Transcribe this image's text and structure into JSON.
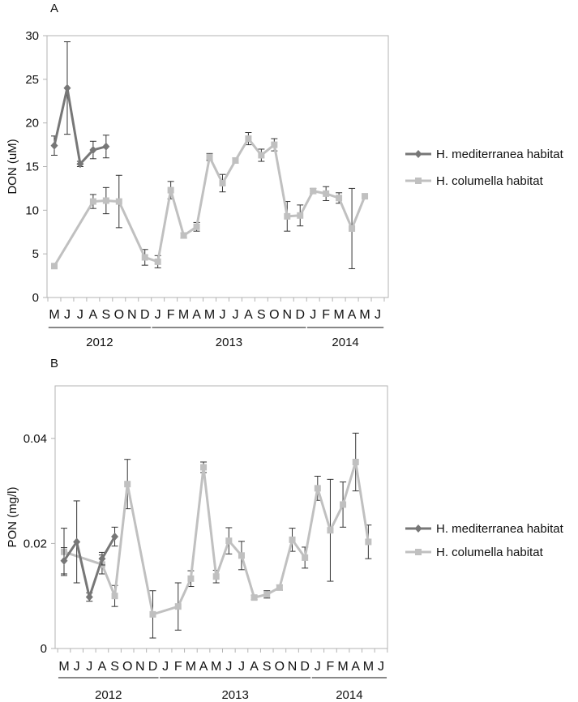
{
  "chart_data": [
    {
      "panel": "A",
      "type": "line",
      "xlabel": "",
      "ylabel": "DON (uM)",
      "ylim": [
        0,
        30
      ],
      "yticks": [
        0,
        5,
        10,
        15,
        20,
        25,
        30
      ],
      "categories": [
        "M",
        "J",
        "J",
        "A",
        "S",
        "O",
        "N",
        "D",
        "J",
        "F",
        "M",
        "A",
        "M",
        "J",
        "J",
        "A",
        "S",
        "O",
        "N",
        "D",
        "J",
        "F",
        "M",
        "A",
        "M",
        "J"
      ],
      "year_groups": [
        {
          "label": "2012",
          "from": 0,
          "to": 7
        },
        {
          "label": "2013",
          "from": 8,
          "to": 19
        },
        {
          "label": "2014",
          "from": 20,
          "to": 25
        }
      ],
      "legend_position": "right",
      "grid": false,
      "series": [
        {
          "name": "H. mediterranea habitat",
          "color": "#777777",
          "marker": "diamond",
          "values": [
            17.4,
            24.0,
            15.3,
            16.9,
            17.3,
            null,
            null,
            null,
            null,
            null,
            null,
            null,
            null,
            null,
            null,
            null,
            null,
            null,
            null,
            null,
            null,
            null,
            null,
            null,
            null,
            null
          ],
          "errors": [
            1.1,
            5.3,
            0.3,
            1.0,
            1.3,
            null,
            null,
            null,
            null,
            null,
            null,
            null,
            null,
            null,
            null,
            null,
            null,
            null,
            null,
            null,
            null,
            null,
            null,
            null,
            null,
            null
          ]
        },
        {
          "name": "H. columella habitat",
          "color": "#c0c0c0",
          "marker": "square",
          "values": [
            3.6,
            null,
            null,
            11.0,
            11.1,
            11.0,
            null,
            4.6,
            4.1,
            12.3,
            7.1,
            8.1,
            16.1,
            13.1,
            15.7,
            18.2,
            16.3,
            17.5,
            9.3,
            9.4,
            12.2,
            11.9,
            11.4,
            7.9,
            11.6,
            null
          ],
          "errors": [
            0,
            null,
            null,
            0.8,
            1.5,
            3.0,
            null,
            0.9,
            0.7,
            1.0,
            0.3,
            0.5,
            0.4,
            1.0,
            0.3,
            0.7,
            0.7,
            0.7,
            1.7,
            1.2,
            0.3,
            0.8,
            0.6,
            4.6,
            0,
            null
          ]
        }
      ]
    },
    {
      "panel": "B",
      "type": "line",
      "xlabel": "",
      "ylabel": "PON (mg/l)",
      "ylim": [
        0,
        0.05
      ],
      "yticks": [
        0,
        0.02,
        0.04
      ],
      "ytick_labels": [
        "0",
        "0.02",
        "0.04"
      ],
      "categories": [
        "M",
        "J",
        "J",
        "A",
        "S",
        "O",
        "N",
        "D",
        "J",
        "F",
        "M",
        "A",
        "M",
        "J",
        "J",
        "A",
        "S",
        "O",
        "N",
        "D",
        "J",
        "F",
        "M",
        "A",
        "M",
        "J"
      ],
      "year_groups": [
        {
          "label": "2012",
          "from": 0,
          "to": 7
        },
        {
          "label": "2013",
          "from": 8,
          "to": 19
        },
        {
          "label": "2014",
          "from": 20,
          "to": 25
        }
      ],
      "legend_position": "right",
      "grid": false,
      "series": [
        {
          "name": "H. mediterranea habitat",
          "color": "#777777",
          "marker": "diamond",
          "values": [
            0.0167,
            0.0203,
            0.0098,
            0.0171,
            0.0213,
            null,
            null,
            null,
            null,
            null,
            null,
            null,
            null,
            null,
            null,
            null,
            null,
            null,
            null,
            null,
            null,
            null,
            null,
            null,
            null,
            null
          ],
          "errors": [
            0.0025,
            0.0078,
            0.0008,
            0.0012,
            0.0018,
            null,
            null,
            null,
            null,
            null,
            null,
            null,
            null,
            null,
            null,
            null,
            null,
            null,
            null,
            null,
            null,
            null,
            null,
            null,
            null,
            null
          ]
        },
        {
          "name": "H. columella habitat",
          "color": "#c0c0c0",
          "marker": "square",
          "values": [
            0.0184,
            null,
            null,
            0.016,
            0.01,
            0.0313,
            null,
            0.0065,
            null,
            0.008,
            0.0133,
            0.0345,
            0.0137,
            0.0205,
            0.0177,
            0.0097,
            0.0103,
            0.0116,
            0.0207,
            0.0173,
            0.0305,
            0.0225,
            0.0274,
            0.0355,
            0.0203,
            null
          ],
          "errors": [
            0.0045,
            null,
            null,
            0.0018,
            0.002,
            0.0047,
            null,
            0.0045,
            null,
            0.0045,
            0.0015,
            0.001,
            0.0012,
            0.0025,
            0.0027,
            0.0004,
            0.0007,
            0.0005,
            0.0022,
            0.002,
            0.0023,
            0.0097,
            0.0043,
            0.0055,
            0.0032,
            null
          ]
        }
      ]
    }
  ]
}
